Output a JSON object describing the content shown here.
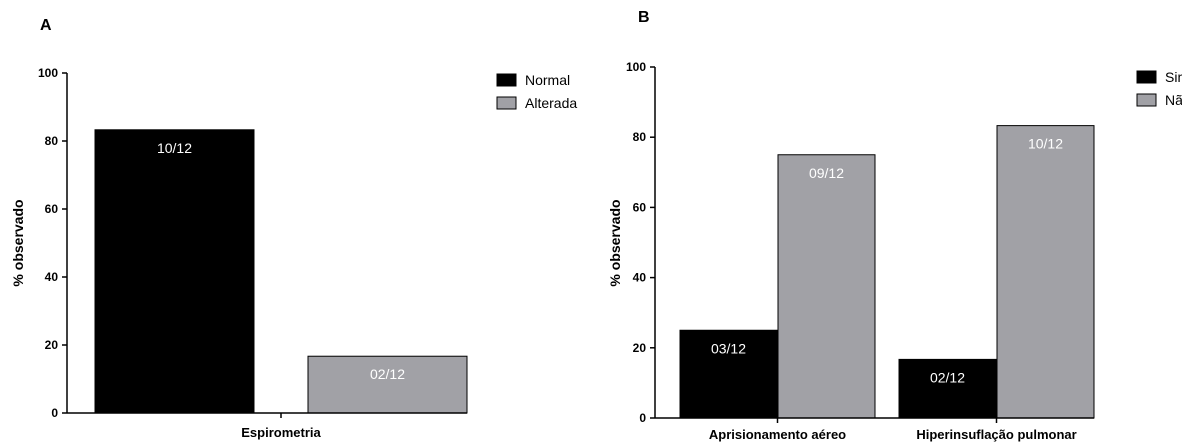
{
  "chart_data": [
    {
      "type": "bar",
      "panel_label": "A",
      "ylabel": "% observado",
      "ylim": [
        0,
        100
      ],
      "yticks": [
        0,
        20,
        40,
        60,
        80,
        100
      ],
      "categories": [
        "Espirometria"
      ],
      "legend_placement": "top-right",
      "grid": false,
      "series": [
        {
          "name": "Normal",
          "color": "#000000",
          "values": [
            83.3
          ],
          "data_labels": [
            "10/12"
          ]
        },
        {
          "name": "Alterada",
          "color": "#a1a1a6",
          "values": [
            16.7
          ],
          "data_labels": [
            "02/12"
          ]
        }
      ]
    },
    {
      "type": "bar",
      "panel_label": "B",
      "ylabel": "% observado",
      "ylim": [
        0,
        100
      ],
      "yticks": [
        0,
        20,
        40,
        60,
        80,
        100
      ],
      "categories": [
        "Aprisionamento aéreo",
        "Hiperinsuflação pulmonar"
      ],
      "legend_placement": "top-right",
      "grid": false,
      "series": [
        {
          "name": "Sim",
          "color": "#000000",
          "values": [
            25,
            16.7
          ],
          "data_labels": [
            "03/12",
            "02/12"
          ]
        },
        {
          "name": "Não",
          "color": "#a1a1a6",
          "values": [
            75,
            83.3
          ],
          "data_labels": [
            "09/12",
            "10/12"
          ]
        }
      ]
    }
  ]
}
